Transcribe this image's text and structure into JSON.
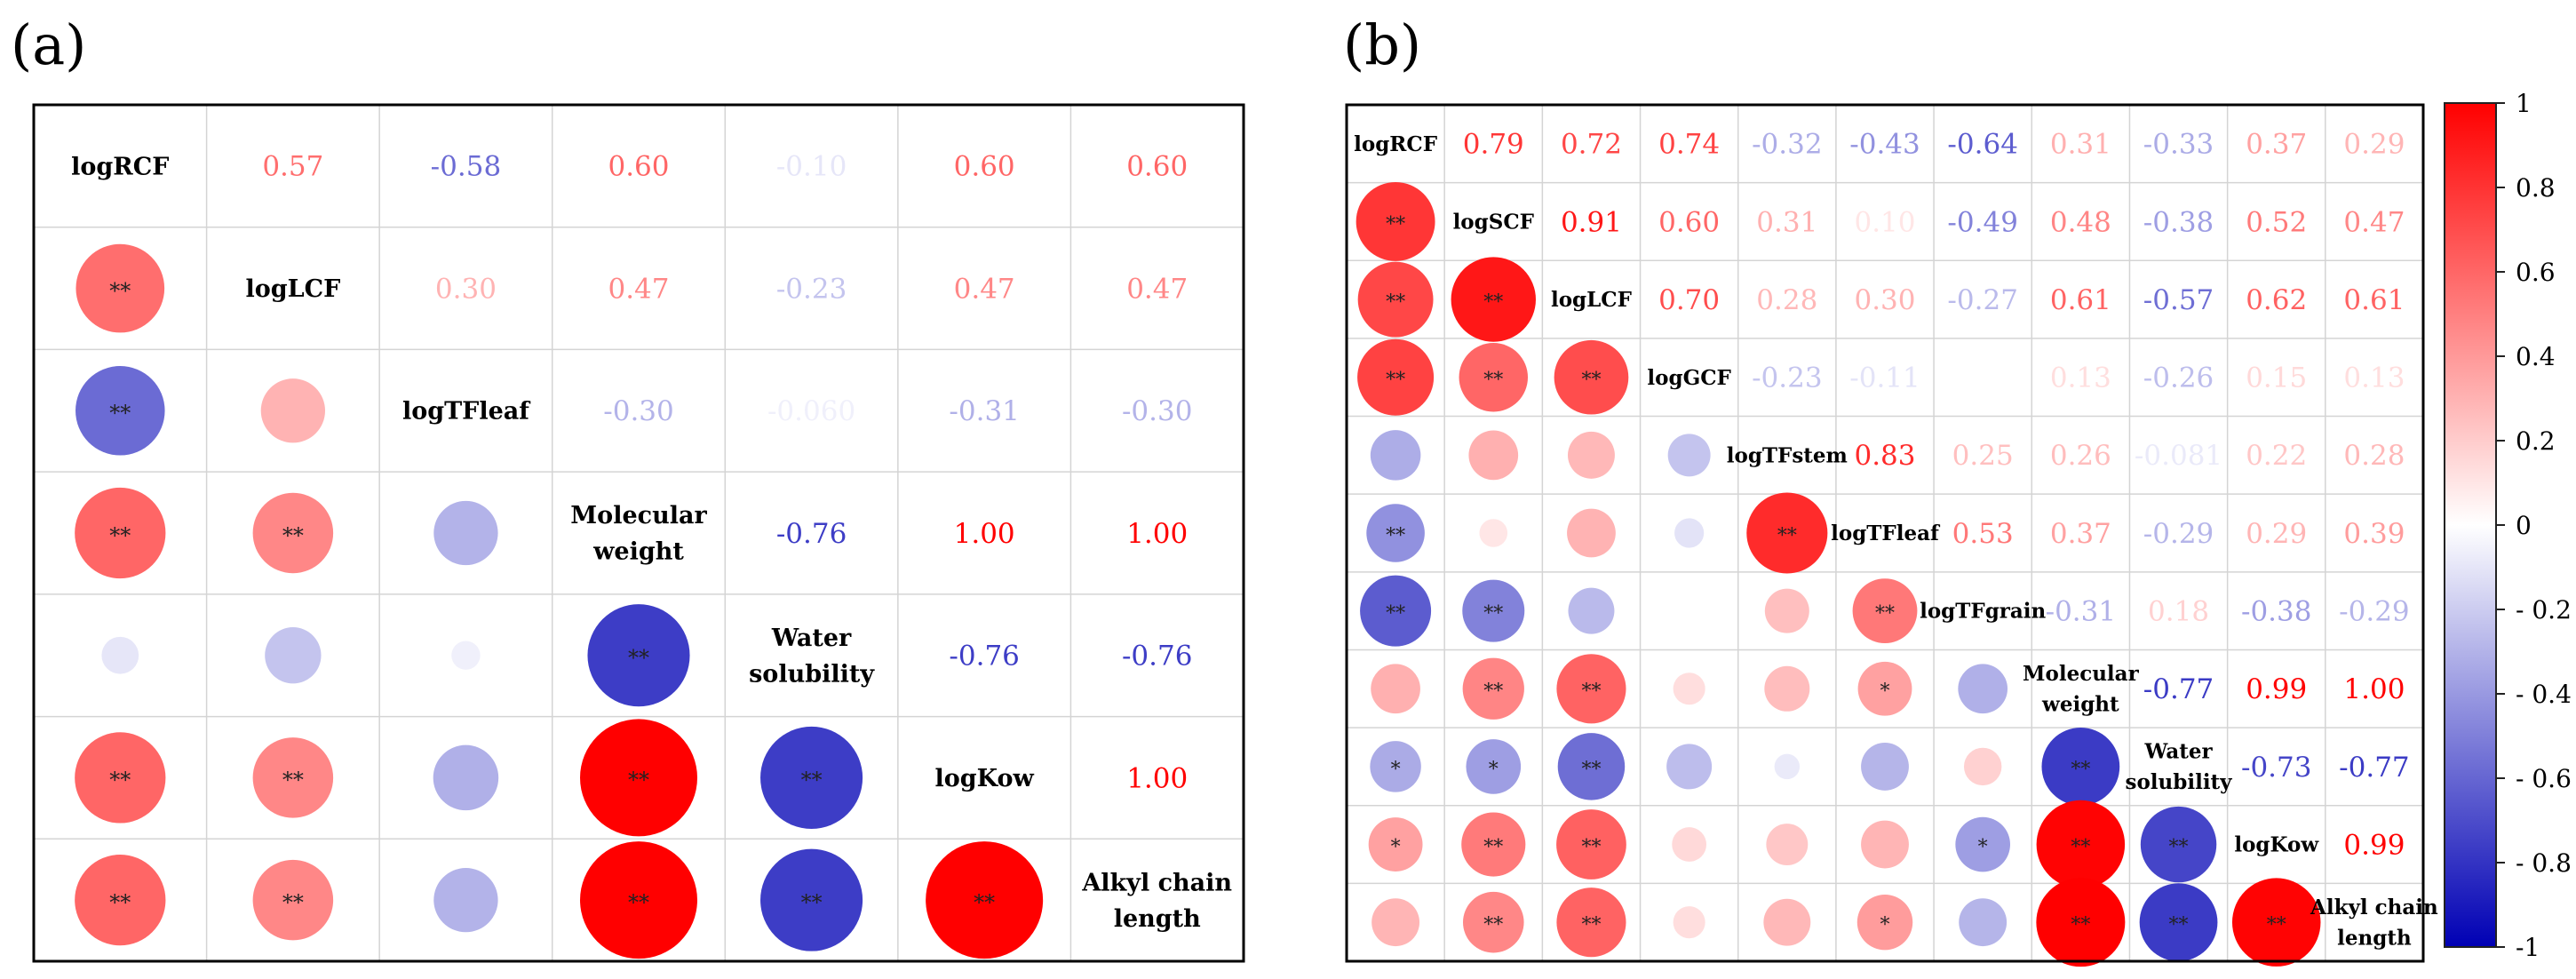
{
  "panels": [
    {
      "label": "(a)"
    },
    {
      "label": "(b)"
    }
  ],
  "colorbar": {
    "ticks": [
      "1",
      "0.8",
      "0.6",
      "0.4",
      "0.2",
      "0",
      "- 0.2",
      "- 0.4",
      "- 0.6",
      "- 0.8",
      "-1"
    ],
    "colors": {
      "pos": "#ff0000",
      "neu": "#ffffff",
      "neg": "#0000b4"
    }
  },
  "chart_data": [
    {
      "type": "heatmap",
      "title": "",
      "variables": [
        [
          "logRCF"
        ],
        [
          "logLCF"
        ],
        [
          "logTFleaf"
        ],
        [
          "Molecular",
          "weight"
        ],
        [
          "Water",
          "solubility"
        ],
        [
          "logKow"
        ],
        [
          "Alkyl chain",
          "length"
        ]
      ],
      "upper_labels": [
        [
          "",
          "0.57",
          "-0.58",
          "0.60",
          "-0.10",
          "0.60",
          "0.60"
        ],
        [
          "",
          "",
          "0.30",
          "0.47",
          "-0.23",
          "0.47",
          "0.47"
        ],
        [
          "",
          "",
          "",
          "-0.30",
          "-0.060",
          "-0.31",
          "-0.30"
        ],
        [
          "",
          "",
          "",
          "",
          "-0.76",
          "1.00",
          "1.00"
        ],
        [
          "",
          "",
          "",
          "",
          "",
          "-0.76",
          "-0.76"
        ],
        [
          "",
          "",
          "",
          "",
          "",
          "",
          "1.00"
        ],
        [
          "",
          "",
          "",
          "",
          "",
          "",
          ""
        ]
      ],
      "values": [
        [
          1,
          0.57,
          -0.58,
          0.6,
          -0.1,
          0.6,
          0.6
        ],
        [
          0.57,
          1,
          0.3,
          0.47,
          -0.23,
          0.47,
          0.47
        ],
        [
          -0.58,
          0.3,
          1,
          -0.3,
          -0.06,
          -0.31,
          -0.3
        ],
        [
          0.6,
          0.47,
          -0.3,
          1,
          -0.76,
          1.0,
          1.0
        ],
        [
          -0.1,
          -0.23,
          -0.06,
          -0.76,
          1,
          -0.76,
          -0.76
        ],
        [
          0.6,
          0.47,
          -0.31,
          1.0,
          -0.76,
          1,
          1.0
        ],
        [
          0.6,
          0.47,
          -0.3,
          1.0,
          -0.76,
          1.0,
          1
        ]
      ],
      "significance": [
        [
          "",
          "",
          "",
          "",
          "",
          "",
          ""
        ],
        [
          "**",
          "",
          "",
          "",
          "",
          "",
          ""
        ],
        [
          "**",
          "",
          "",
          "",
          "",
          "",
          ""
        ],
        [
          "**",
          "**",
          "",
          "",
          "",
          "",
          ""
        ],
        [
          "",
          "",
          "",
          "**",
          "",
          "",
          ""
        ],
        [
          "**",
          "**",
          "",
          "**",
          "**",
          "",
          ""
        ],
        [
          "**",
          "**",
          "",
          "**",
          "**",
          "**",
          ""
        ]
      ]
    },
    {
      "type": "heatmap",
      "title": "",
      "variables": [
        [
          "logRCF"
        ],
        [
          "logSCF"
        ],
        [
          "logLCF"
        ],
        [
          "logGCF"
        ],
        [
          "logTFstem"
        ],
        [
          "logTFleaf"
        ],
        [
          "logTFgrain"
        ],
        [
          "Molecular",
          "weight"
        ],
        [
          "Water",
          "solubility"
        ],
        [
          "logKow"
        ],
        [
          "Alkyl chain",
          "length"
        ]
      ],
      "upper_labels": [
        [
          "",
          "0.79",
          "0.72",
          "0.74",
          "-0.32",
          "-0.43",
          "-0.64",
          "0.31",
          "-0.33",
          "0.37",
          "0.29"
        ],
        [
          "",
          "",
          "0.91",
          "0.60",
          "0.31",
          "0.10",
          "-0.49",
          "0.48",
          "-0.38",
          "0.52",
          "0.47"
        ],
        [
          "",
          "",
          "",
          "0.70",
          "0.28",
          "0.30",
          "-0.27",
          "0.61",
          "-0.57",
          "0.62",
          "0.61"
        ],
        [
          "",
          "",
          "",
          "",
          "-0.23",
          "-0.11",
          "",
          "0.13",
          "-0.26",
          "0.15",
          "0.13"
        ],
        [
          "",
          "",
          "",
          "",
          "",
          "0.83",
          "0.25",
          "0.26",
          "-0.081",
          "0.22",
          "0.28"
        ],
        [
          "",
          "",
          "",
          "",
          "",
          "",
          "0.53",
          "0.37",
          "-0.29",
          "0.29",
          "0.39"
        ],
        [
          "",
          "",
          "",
          "",
          "",
          "",
          "",
          "-0.31",
          "0.18",
          "-0.38",
          "-0.29"
        ],
        [
          "",
          "",
          "",
          "",
          "",
          "",
          "",
          "",
          "-0.77",
          "0.99",
          "1.00"
        ],
        [
          "",
          "",
          "",
          "",
          "",
          "",
          "",
          "",
          "",
          "-0.73",
          "-0.77"
        ],
        [
          "",
          "",
          "",
          "",
          "",
          "",
          "",
          "",
          "",
          "",
          "0.99"
        ],
        [
          "",
          "",
          "",
          "",
          "",
          "",
          "",
          "",
          "",
          "",
          ""
        ]
      ],
      "values": [
        [
          1,
          0.79,
          0.72,
          0.74,
          -0.32,
          -0.43,
          -0.64,
          0.31,
          -0.33,
          0.37,
          0.29
        ],
        [
          0.79,
          1,
          0.91,
          0.6,
          0.31,
          0.1,
          -0.49,
          0.48,
          -0.38,
          0.52,
          0.47
        ],
        [
          0.72,
          0.91,
          1,
          0.7,
          0.28,
          0.3,
          -0.27,
          0.61,
          -0.57,
          0.62,
          0.61
        ],
        [
          0.74,
          0.6,
          0.7,
          1,
          -0.23,
          -0.11,
          0,
          0.13,
          -0.26,
          0.15,
          0.13
        ],
        [
          -0.32,
          0.31,
          0.28,
          -0.23,
          1,
          0.83,
          0.25,
          0.26,
          -0.081,
          0.22,
          0.28
        ],
        [
          -0.43,
          0.1,
          0.3,
          -0.11,
          0.83,
          1,
          0.53,
          0.37,
          -0.29,
          0.29,
          0.39
        ],
        [
          -0.64,
          -0.49,
          -0.27,
          0,
          0.25,
          0.53,
          1,
          -0.31,
          0.18,
          -0.38,
          -0.29
        ],
        [
          0.31,
          0.48,
          0.61,
          0.13,
          0.26,
          0.37,
          -0.31,
          1,
          -0.77,
          0.99,
          1.0
        ],
        [
          -0.33,
          -0.38,
          -0.57,
          -0.26,
          -0.081,
          -0.29,
          0.18,
          -0.77,
          1,
          -0.73,
          -0.77
        ],
        [
          0.37,
          0.52,
          0.62,
          0.15,
          0.22,
          0.29,
          -0.38,
          0.99,
          -0.73,
          1,
          0.99
        ],
        [
          0.29,
          0.47,
          0.61,
          0.13,
          0.28,
          0.39,
          -0.29,
          1.0,
          -0.77,
          0.99,
          1
        ]
      ],
      "significance": [
        [
          "",
          "",
          "",
          "",
          "",
          "",
          "",
          "",
          "",
          "",
          ""
        ],
        [
          "**",
          "",
          "",
          "",
          "",
          "",
          "",
          "",
          "",
          "",
          ""
        ],
        [
          "**",
          "**",
          "",
          "",
          "",
          "",
          "",
          "",
          "",
          "",
          ""
        ],
        [
          "**",
          "**",
          "**",
          "",
          "",
          "",
          "",
          "",
          "",
          "",
          ""
        ],
        [
          "",
          "",
          "",
          "",
          "",
          "",
          "",
          "",
          "",
          "",
          ""
        ],
        [
          "**",
          "",
          "",
          "",
          "**",
          "",
          "",
          "",
          "",
          "",
          ""
        ],
        [
          "**",
          "**",
          "",
          "",
          "",
          "**",
          "",
          "",
          "",
          "",
          ""
        ],
        [
          "",
          "**",
          "**",
          "",
          "",
          "*",
          "",
          "",
          "",
          "",
          ""
        ],
        [
          "*",
          "*",
          "**",
          "",
          "",
          "",
          "",
          "**",
          "",
          "",
          ""
        ],
        [
          "*",
          "**",
          "**",
          "",
          "",
          "",
          "*",
          "**",
          "**",
          "",
          ""
        ],
        [
          "",
          "**",
          "**",
          "",
          "",
          "*",
          "",
          "**",
          "**",
          "**",
          ""
        ]
      ]
    }
  ]
}
